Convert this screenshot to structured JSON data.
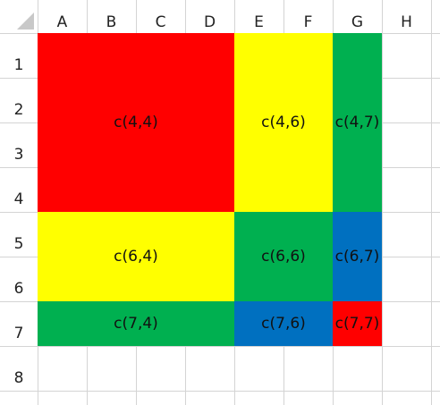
{
  "columns": [
    "A",
    "B",
    "C",
    "D",
    "E",
    "F",
    "G",
    "H"
  ],
  "rows": [
    "1",
    "2",
    "3",
    "4",
    "5",
    "6",
    "7",
    "8"
  ],
  "cells": [
    "c(4,4)",
    "c(4,6)",
    "c(4,7)",
    "c(6,4)",
    "c(6,6)",
    "c(6,7)",
    "c(7,4)",
    "c(7,6)",
    "c(7,7)"
  ]
}
